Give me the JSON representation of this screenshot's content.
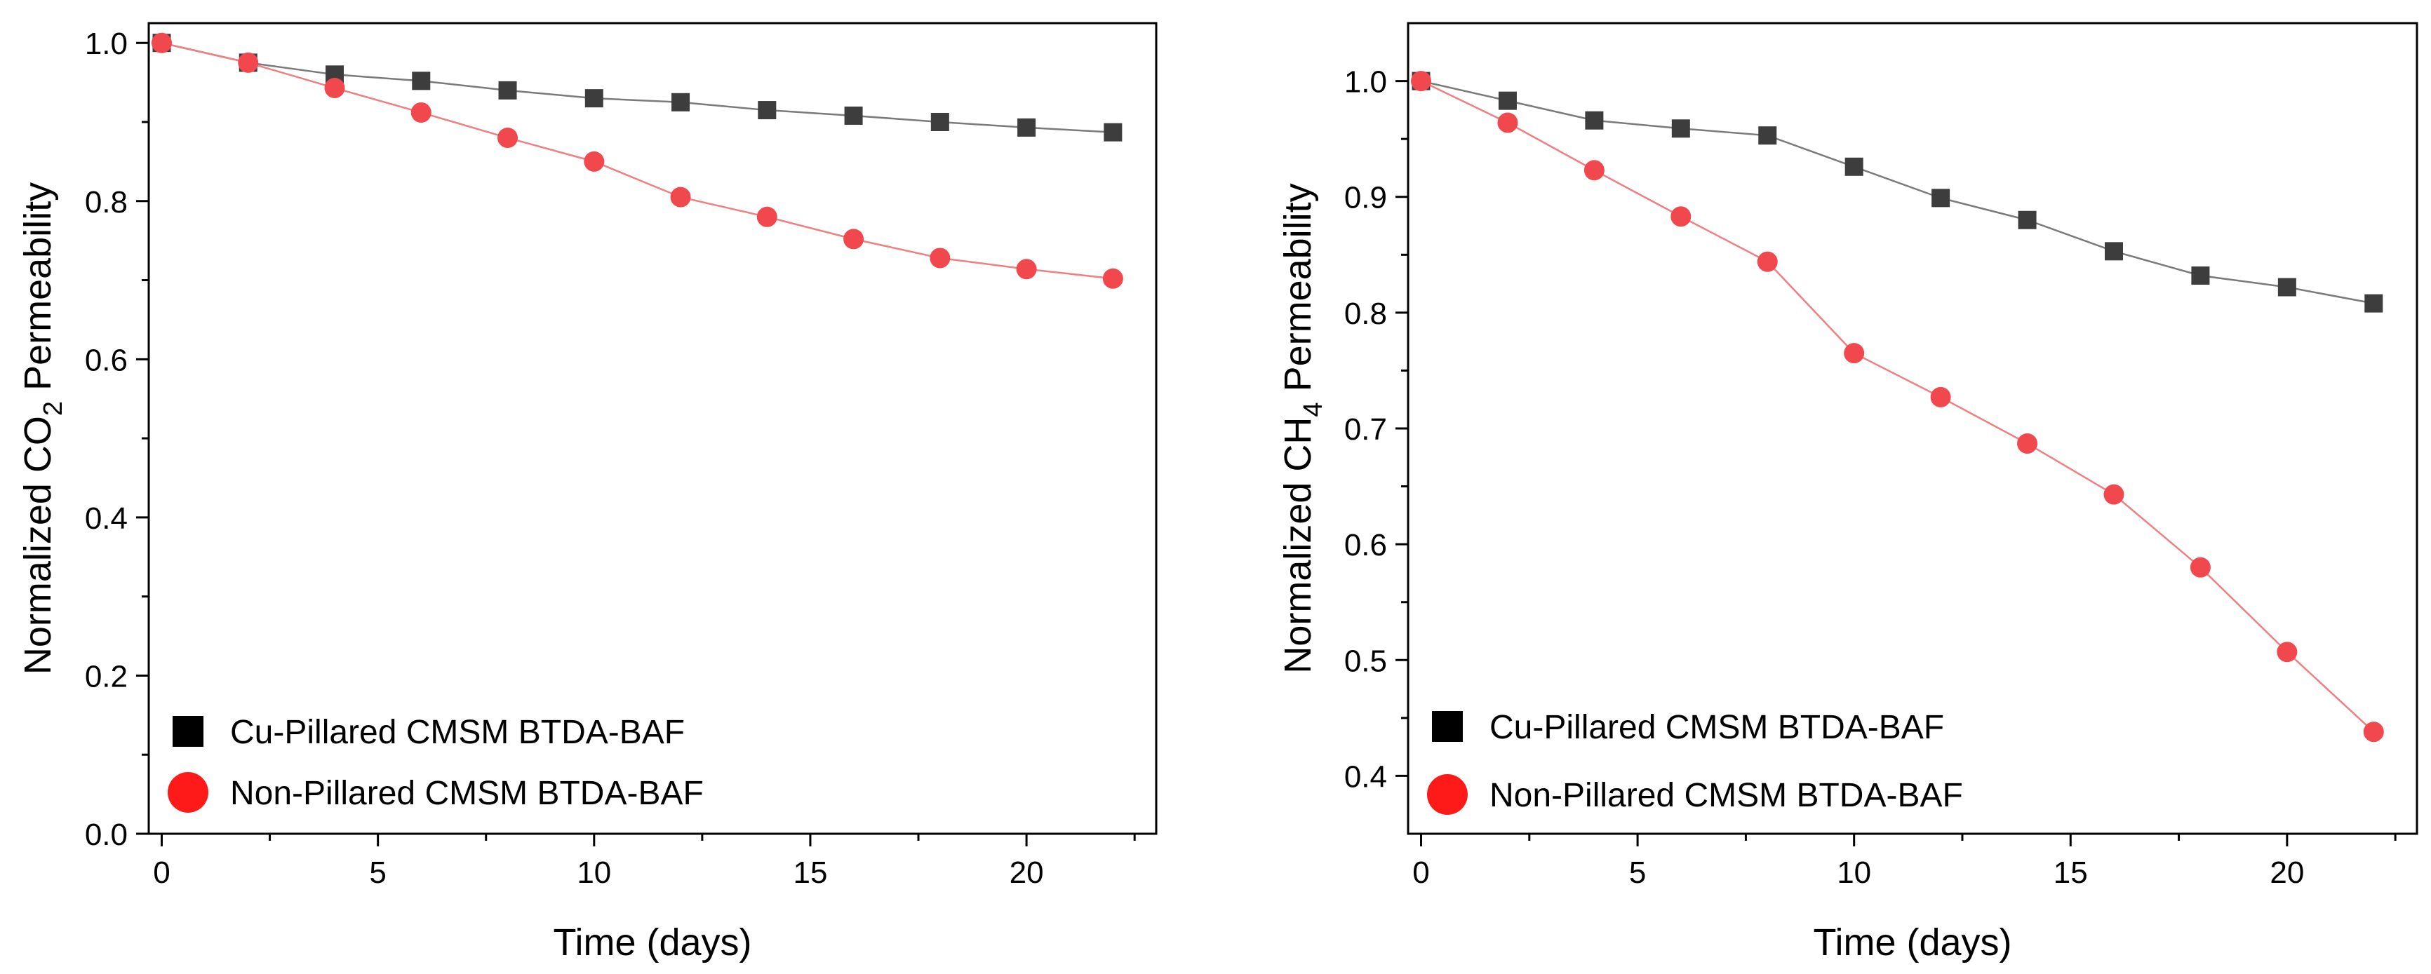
{
  "chart_data": [
    {
      "type": "line",
      "x": [
        0,
        2,
        4,
        6,
        8,
        10,
        12,
        14,
        16,
        18,
        20,
        22
      ],
      "series": [
        {
          "name": "Cu-Pillared CMSM BTDA-BAF",
          "marker": "square",
          "color": "#3d3d3d",
          "line_color": "#7a7a7a",
          "values": [
            1.0,
            0.975,
            0.96,
            0.952,
            0.94,
            0.93,
            0.925,
            0.915,
            0.908,
            0.9,
            0.893,
            0.887
          ]
        },
        {
          "name": "Non-Pillared CMSM BTDA-BAF",
          "marker": "circle",
          "color": "#f0484d",
          "line_color": "#f07f82",
          "values": [
            1.0,
            0.975,
            0.943,
            0.912,
            0.88,
            0.85,
            0.805,
            0.78,
            0.752,
            0.728,
            0.714,
            0.702
          ]
        }
      ],
      "xlabel": "Time (days)",
      "ylabel_prefix": "Normalized CO",
      "ylabel_subscript": "2",
      "ylabel_suffix": " Permeability",
      "xlim": [
        -0.3,
        23
      ],
      "ylim": [
        0.0,
        1.025
      ],
      "xticks": [
        0,
        5,
        10,
        15,
        20
      ],
      "xtick_labels": [
        "0",
        "5",
        "10",
        "15",
        "20"
      ],
      "yticks": [
        0.0,
        0.2,
        0.4,
        0.6,
        0.8,
        1.0
      ],
      "ytick_labels": [
        "0.0",
        "0.2",
        "0.4",
        "0.6",
        "0.8",
        "1.0"
      ],
      "legend_position": "bottom-left",
      "grid": false
    },
    {
      "type": "line",
      "x": [
        0,
        2,
        4,
        6,
        8,
        10,
        12,
        14,
        16,
        18,
        20,
        22
      ],
      "series": [
        {
          "name": "Cu-Pillared CMSM BTDA-BAF",
          "marker": "square",
          "color": "#3d3d3d",
          "line_color": "#7a7a7a",
          "values": [
            1.0,
            0.983,
            0.966,
            0.959,
            0.953,
            0.926,
            0.899,
            0.88,
            0.853,
            0.832,
            0.822,
            0.808
          ]
        },
        {
          "name": "Non-Pillared CMSM BTDA-BAF",
          "marker": "circle",
          "color": "#f0484d",
          "line_color": "#f07f82",
          "values": [
            1.0,
            0.964,
            0.923,
            0.883,
            0.844,
            0.765,
            0.727,
            0.687,
            0.643,
            0.58,
            0.507,
            0.438
          ]
        }
      ],
      "xlabel": "Time (days)",
      "ylabel_prefix": "Normalized CH",
      "ylabel_subscript": "4",
      "ylabel_suffix": " Permeability",
      "xlim": [
        -0.3,
        23
      ],
      "ylim": [
        0.35,
        1.05
      ],
      "xticks": [
        0,
        5,
        10,
        15,
        20
      ],
      "xtick_labels": [
        "0",
        "5",
        "10",
        "15",
        "20"
      ],
      "yticks": [
        0.4,
        0.5,
        0.6,
        0.7,
        0.8,
        0.9,
        1.0
      ],
      "ytick_labels": [
        "0.4",
        "0.5",
        "0.6",
        "0.7",
        "0.8",
        "0.9",
        "1.0"
      ],
      "legend_position": "bottom-left",
      "grid": false
    }
  ]
}
